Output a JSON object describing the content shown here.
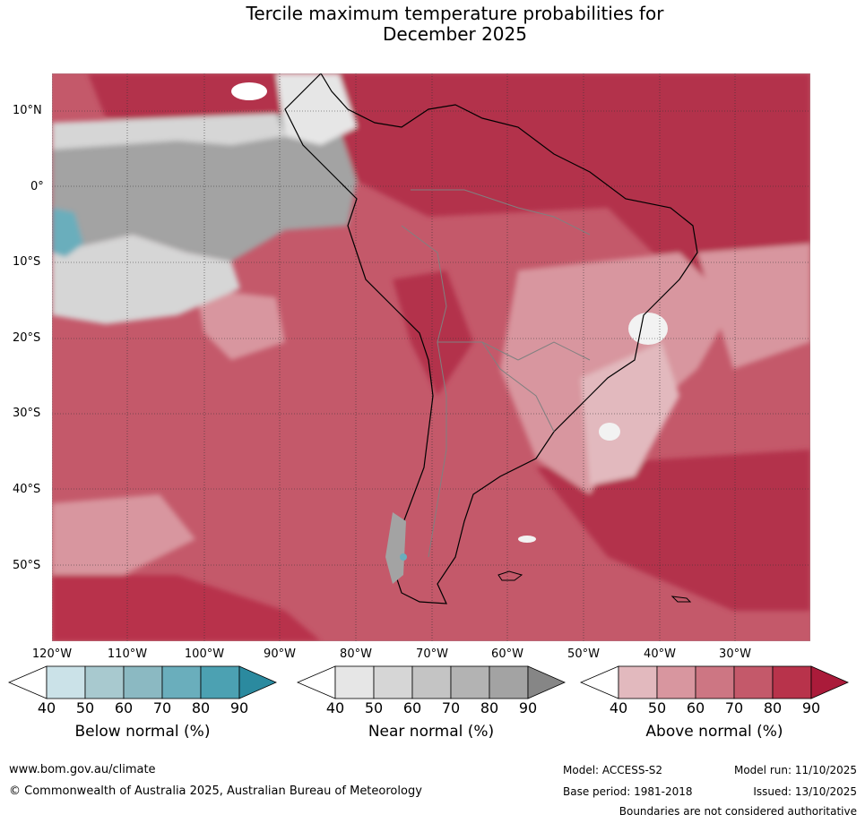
{
  "title": {
    "line1": "Tercile maximum temperature probabilities for",
    "line2": "December 2025"
  },
  "map": {
    "latitude_labels": [
      "10°N",
      "0°",
      "10°S",
      "20°S",
      "30°S",
      "40°S",
      "50°S"
    ],
    "longitude_labels": [
      "120°W",
      "110°W",
      "100°W",
      "90°W",
      "80°W",
      "70°W",
      "60°W",
      "50°W",
      "40°W",
      "30°W"
    ]
  },
  "legend": {
    "below": {
      "label": "Below normal (%)",
      "ticks": [
        "40",
        "50",
        "60",
        "70",
        "80",
        "90"
      ],
      "colors": [
        "#ffffff",
        "#cbe2e8",
        "#a8c9cf",
        "#8bb9c2",
        "#6aaebc",
        "#4ca1b2",
        "#2b8a9f"
      ]
    },
    "near": {
      "label": "Near normal (%)",
      "ticks": [
        "40",
        "50",
        "60",
        "70",
        "80",
        "90"
      ],
      "colors": [
        "#ffffff",
        "#e6e6e6",
        "#d6d6d6",
        "#c4c4c4",
        "#b3b3b3",
        "#a3a3a3",
        "#868686"
      ]
    },
    "above": {
      "label": "Above normal (%)",
      "ticks": [
        "40",
        "50",
        "60",
        "70",
        "80",
        "90"
      ],
      "colors": [
        "#ffffff",
        "#e2b9be",
        "#d8969f",
        "#cd7683",
        "#c4596a",
        "#b8334b",
        "#aa1b3a"
      ]
    }
  },
  "footer": {
    "website": "www.bom.gov.au/climate",
    "copyright": "© Commonwealth of Australia 2025, Australian Bureau of Meteorology",
    "model": "Model: ACCESS-S2",
    "model_run": "Model run: 11/10/2025",
    "base_period": "Base period: 1981-2018",
    "issued": "Issued: 13/10/2025",
    "disclaimer": "Boundaries are not considered authoritative"
  }
}
